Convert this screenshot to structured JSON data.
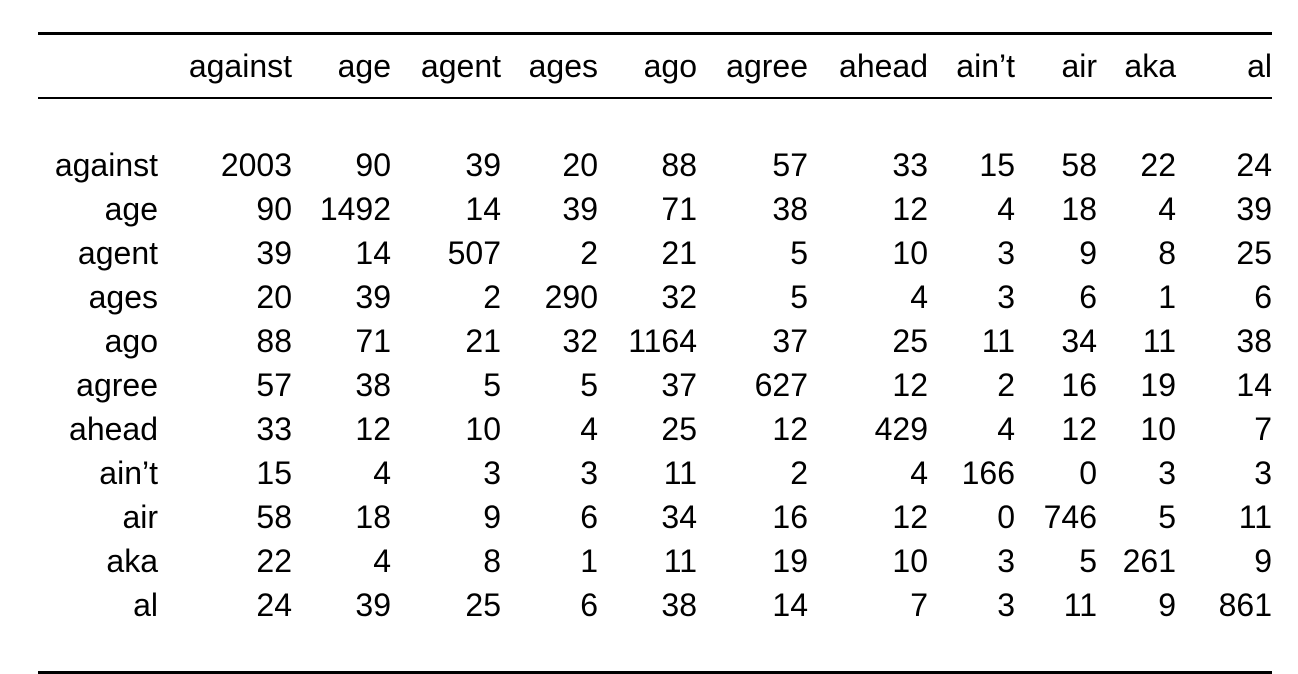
{
  "table": {
    "columns": [
      "",
      "against",
      "age",
      "agent",
      "ages",
      "ago",
      "agree",
      "ahead",
      "ain’t",
      "air",
      "aka",
      "al"
    ],
    "rows": [
      [
        "against",
        "2003",
        "90",
        "39",
        "20",
        "88",
        "57",
        "33",
        "15",
        "58",
        "22",
        "24"
      ],
      [
        "age",
        "90",
        "1492",
        "14",
        "39",
        "71",
        "38",
        "12",
        "4",
        "18",
        "4",
        "39"
      ],
      [
        "agent",
        "39",
        "14",
        "507",
        "2",
        "21",
        "5",
        "10",
        "3",
        "9",
        "8",
        "25"
      ],
      [
        "ages",
        "20",
        "39",
        "2",
        "290",
        "32",
        "5",
        "4",
        "3",
        "6",
        "1",
        "6"
      ],
      [
        "ago",
        "88",
        "71",
        "21",
        "32",
        "1164",
        "37",
        "25",
        "11",
        "34",
        "11",
        "38"
      ],
      [
        "agree",
        "57",
        "38",
        "5",
        "5",
        "37",
        "627",
        "12",
        "2",
        "16",
        "19",
        "14"
      ],
      [
        "ahead",
        "33",
        "12",
        "10",
        "4",
        "25",
        "12",
        "429",
        "4",
        "12",
        "10",
        "7"
      ],
      [
        "ain’t",
        "15",
        "4",
        "3",
        "3",
        "11",
        "2",
        "4",
        "166",
        "0",
        "3",
        "3"
      ],
      [
        "air",
        "58",
        "18",
        "9",
        "6",
        "34",
        "16",
        "12",
        "0",
        "746",
        "5",
        "11"
      ],
      [
        "aka",
        "22",
        "4",
        "8",
        "1",
        "11",
        "19",
        "10",
        "3",
        "5",
        "261",
        "9"
      ],
      [
        "al",
        "24",
        "39",
        "25",
        "6",
        "38",
        "14",
        "7",
        "3",
        "11",
        "9",
        "861"
      ]
    ]
  }
}
